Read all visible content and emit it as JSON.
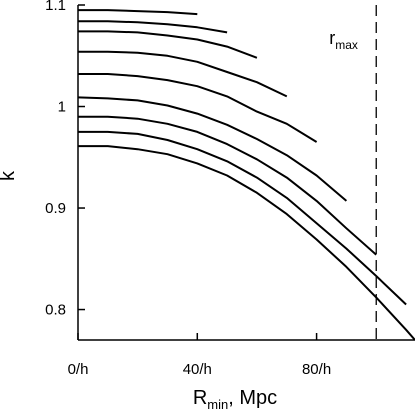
{
  "chart_data": {
    "type": "line",
    "title": "",
    "xlabel": {
      "main": "R",
      "sub": "min",
      "rest": ", Mpc"
    },
    "ylabel": "k",
    "xlim": [
      0,
      113
    ],
    "ylim": [
      0.77,
      1.1
    ],
    "x_ticks": [
      {
        "value": 0,
        "label": "0/h"
      },
      {
        "value": 40,
        "label": "40/h"
      },
      {
        "value": 80,
        "label": "80/h"
      }
    ],
    "y_ticks": [
      {
        "value": 0.8,
        "label": "0.8"
      },
      {
        "value": 0.9,
        "label": "0.9"
      },
      {
        "value": 1.0,
        "label": "1"
      },
      {
        "value": 1.1,
        "label": "1.1"
      }
    ],
    "grid": false,
    "vline": {
      "x": 100,
      "style": "dashed",
      "label_main": "r",
      "label_sub": "max"
    },
    "series": [
      {
        "values": [
          [
            0,
            1.095
          ],
          [
            10,
            1.095
          ],
          [
            20,
            1.094
          ],
          [
            30,
            1.093
          ],
          [
            40,
            1.091
          ]
        ]
      },
      {
        "values": [
          [
            0,
            1.084
          ],
          [
            10,
            1.084
          ],
          [
            20,
            1.083
          ],
          [
            30,
            1.081
          ],
          [
            40,
            1.078
          ],
          [
            50,
            1.073
          ]
        ]
      },
      {
        "values": [
          [
            0,
            1.074
          ],
          [
            10,
            1.074
          ],
          [
            20,
            1.073
          ],
          [
            30,
            1.07
          ],
          [
            40,
            1.066
          ],
          [
            50,
            1.059
          ],
          [
            60,
            1.048
          ]
        ]
      },
      {
        "values": [
          [
            0,
            1.054
          ],
          [
            10,
            1.054
          ],
          [
            20,
            1.053
          ],
          [
            30,
            1.05
          ],
          [
            40,
            1.044
          ],
          [
            50,
            1.034
          ],
          [
            60,
            1.024
          ],
          [
            70,
            1.01
          ]
        ]
      },
      {
        "values": [
          [
            0,
            1.032
          ],
          [
            10,
            1.032
          ],
          [
            20,
            1.03
          ],
          [
            30,
            1.026
          ],
          [
            40,
            1.02
          ],
          [
            50,
            1.01
          ],
          [
            60,
            0.995
          ],
          [
            70,
            0.983
          ],
          [
            80,
            0.965
          ]
        ]
      },
      {
        "values": [
          [
            0,
            1.009
          ],
          [
            10,
            1.008
          ],
          [
            20,
            1.006
          ],
          [
            30,
            1.001
          ],
          [
            40,
            0.993
          ],
          [
            50,
            0.982
          ],
          [
            60,
            0.968
          ],
          [
            70,
            0.952
          ],
          [
            80,
            0.932
          ],
          [
            90,
            0.907
          ]
        ]
      },
      {
        "values": [
          [
            0,
            0.99
          ],
          [
            10,
            0.99
          ],
          [
            20,
            0.988
          ],
          [
            30,
            0.983
          ],
          [
            40,
            0.975
          ],
          [
            50,
            0.963
          ],
          [
            60,
            0.948
          ],
          [
            70,
            0.93
          ],
          [
            80,
            0.907
          ],
          [
            90,
            0.88
          ],
          [
            100,
            0.854
          ]
        ]
      },
      {
        "values": [
          [
            0,
            0.975
          ],
          [
            10,
            0.975
          ],
          [
            20,
            0.973
          ],
          [
            30,
            0.967
          ],
          [
            40,
            0.958
          ],
          [
            50,
            0.946
          ],
          [
            60,
            0.93
          ],
          [
            70,
            0.91
          ],
          [
            80,
            0.885
          ],
          [
            90,
            0.86
          ],
          [
            100,
            0.833
          ],
          [
            110,
            0.805
          ]
        ]
      },
      {
        "values": [
          [
            0,
            0.961
          ],
          [
            10,
            0.961
          ],
          [
            20,
            0.958
          ],
          [
            30,
            0.953
          ],
          [
            40,
            0.944
          ],
          [
            50,
            0.932
          ],
          [
            60,
            0.915
          ],
          [
            70,
            0.894
          ],
          [
            80,
            0.869
          ],
          [
            90,
            0.842
          ],
          [
            100,
            0.812
          ],
          [
            110,
            0.78
          ],
          [
            113,
            0.77
          ]
        ]
      }
    ]
  }
}
